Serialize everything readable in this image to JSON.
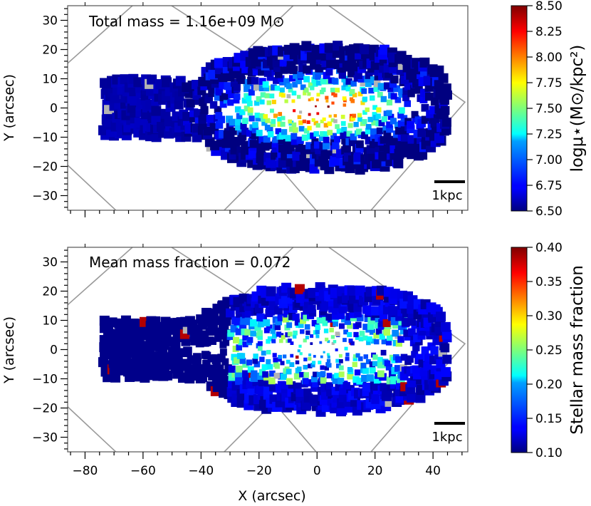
{
  "chart_data": [
    {
      "type": "scatter",
      "panel": "top",
      "subtype": "voronoi-binned map",
      "annotation": "Total mass = 1.16e+09 M⊙",
      "xlabel": "",
      "ylabel": "Y (arcsec)",
      "xlim": [
        -86,
        52
      ],
      "ylim": [
        -35,
        35
      ],
      "xticks": [
        -80,
        -60,
        -40,
        -20,
        0,
        20,
        40
      ],
      "yticks": [
        "30",
        "20",
        "10",
        "0",
        "−10",
        "−20",
        "−30"
      ],
      "colorbar": {
        "label": "logμ⋆(M⊙/kpc²)",
        "min": 6.5,
        "max": 8.5,
        "ticks": [
          "8.50",
          "8.25",
          "8.00",
          "7.75",
          "7.50",
          "7.25",
          "7.00",
          "6.75",
          "6.50"
        ],
        "colormap": "jet"
      },
      "scalebar": "1kpc",
      "grid": false,
      "legend": "none"
    },
    {
      "type": "scatter",
      "panel": "bottom",
      "subtype": "voronoi-binned map",
      "annotation": "Mean mass fraction = 0.072",
      "xlabel": "X (arcsec)",
      "ylabel": "Y (arcsec)",
      "xlim": [
        -86,
        52
      ],
      "ylim": [
        -35,
        35
      ],
      "xticks": [
        -80,
        -60,
        -40,
        -20,
        0,
        20,
        40
      ],
      "yticks": [
        "30",
        "20",
        "10",
        "0",
        "−10",
        "−20",
        "−30"
      ],
      "colorbar": {
        "label": "Stellar mass fraction",
        "min": 0.1,
        "max": 0.4,
        "ticks": [
          "0.40",
          "0.35",
          "0.30",
          "0.25",
          "0.20",
          "0.15",
          "0.10"
        ],
        "colormap": "jet"
      },
      "scalebar": "1kpc",
      "grid": false,
      "legend": "none"
    }
  ],
  "colors": {
    "masked_bins": "#b4b4b4",
    "footprint_outline": "#9a9a9a"
  }
}
